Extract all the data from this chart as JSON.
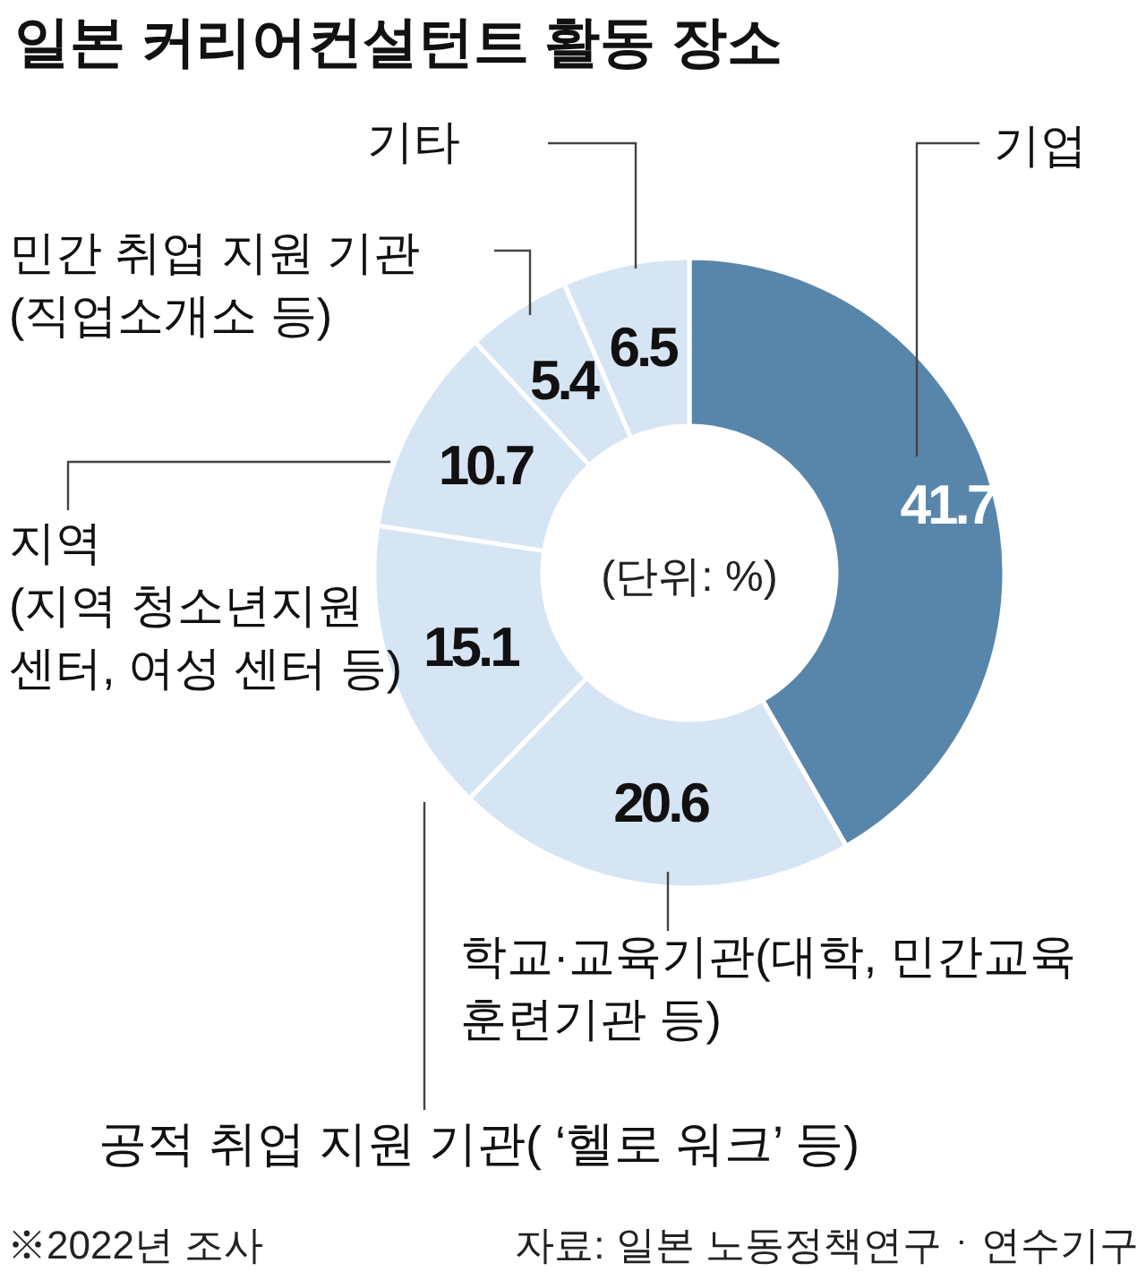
{
  "chart_data": {
    "type": "donut",
    "title": "일본 커리어컨설턴트 활동 장소",
    "categories": [
      "기업",
      "학교·교육기관(대학, 민간교육\n훈련기관 등)",
      "공적 취업 지원 기관( ‘헬로 워크’ 등)",
      "지역\n(지역 청소년지원\n센터, 여성 센터 등)",
      "민간 취업 지원 기관\n(직업소개소 등)",
      "기타"
    ],
    "values": [
      41.7,
      20.6,
      15.1,
      10.7,
      5.4,
      6.5
    ],
    "colors": [
      "#5886ab",
      "#d5e5f4",
      "#d5e5f4",
      "#d5e5f4",
      "#d5e5f4",
      "#d5e5f4"
    ],
    "data_labels": true,
    "annotations": [
      "(단위: %)",
      "※2022년 조사",
      "자료: 일본 노동정책연구ㆍ연수기구"
    ]
  }
}
